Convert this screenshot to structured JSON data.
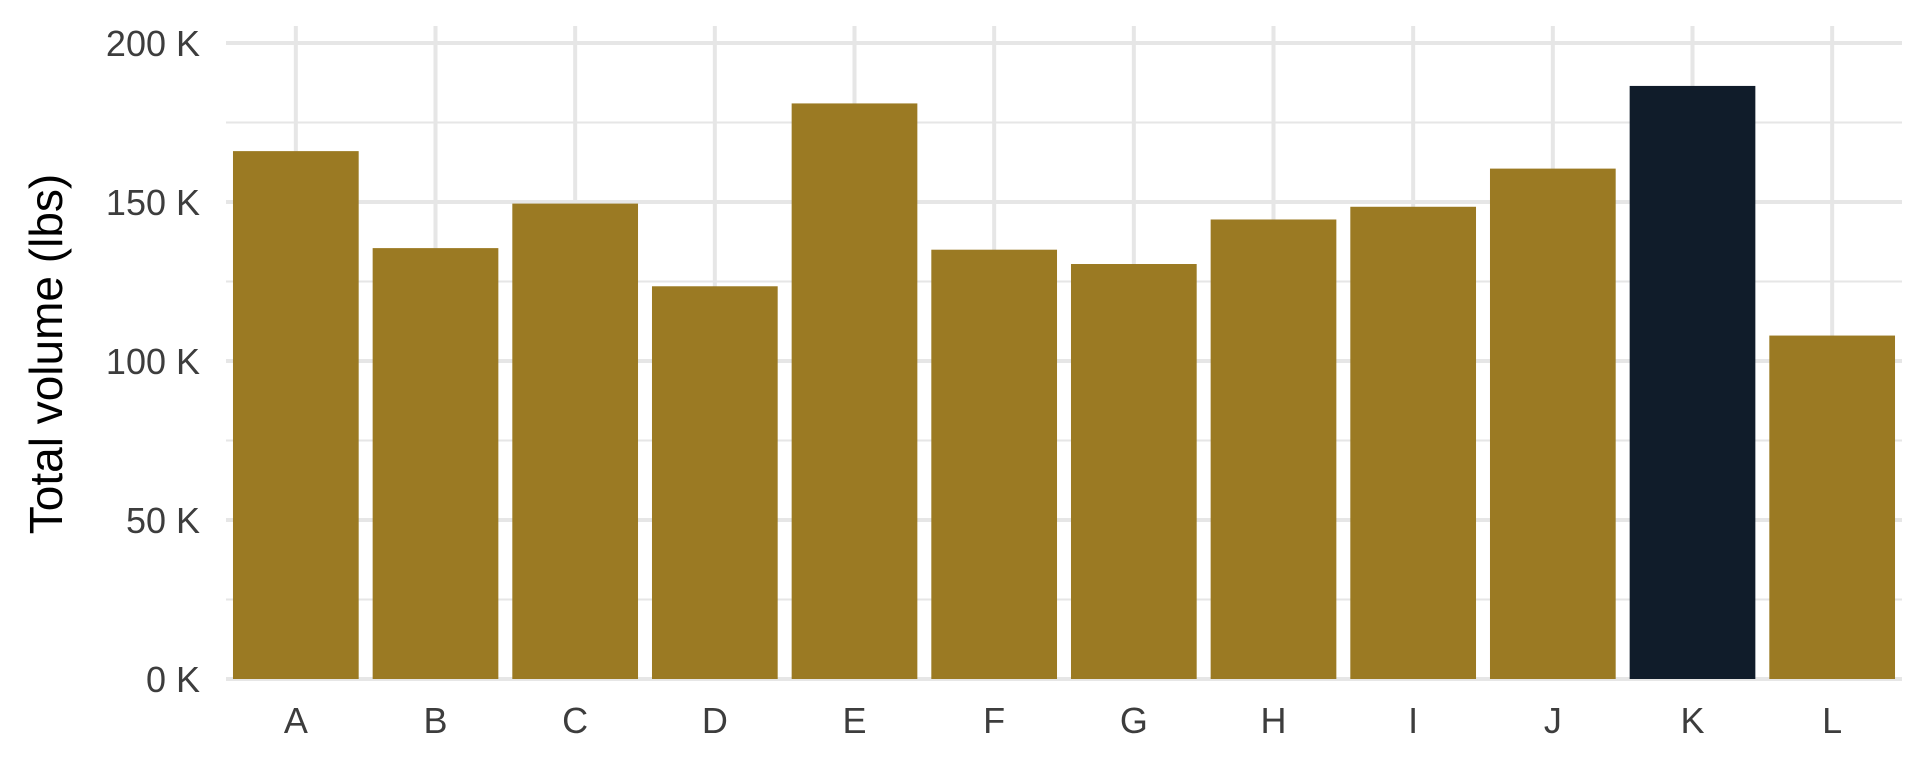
{
  "chart_data": {
    "type": "bar",
    "title": "",
    "xlabel": "",
    "ylabel": "Total volume (lbs)",
    "categories": [
      "A",
      "B",
      "C",
      "D",
      "E",
      "F",
      "G",
      "H",
      "I",
      "J",
      "K",
      "L"
    ],
    "values": [
      166000,
      135500,
      149500,
      123500,
      181000,
      135000,
      130500,
      144500,
      148500,
      160500,
      186500,
      108000
    ],
    "highlighted_category": "K",
    "ylim": [
      0,
      200000
    ],
    "y_ticks": [
      0,
      50000,
      100000,
      150000,
      200000
    ],
    "y_tick_labels": [
      "0 K",
      "50 K",
      "100 K",
      "150 K",
      "200 K"
    ],
    "grid": true,
    "legend": "none",
    "colors": {
      "bar": "#9b7a23",
      "highlight": "#101c2a",
      "grid": "#e6e6e6",
      "background": "#ffffff"
    }
  }
}
